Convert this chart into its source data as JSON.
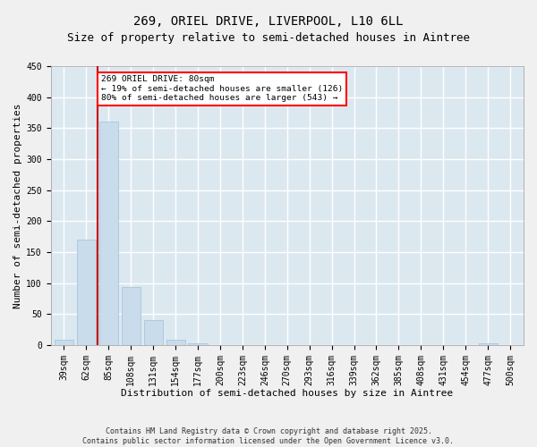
{
  "title_line1": "269, ORIEL DRIVE, LIVERPOOL, L10 6LL",
  "title_line2": "Size of property relative to semi-detached houses in Aintree",
  "xlabel": "Distribution of semi-detached houses by size in Aintree",
  "ylabel": "Number of semi-detached properties",
  "categories": [
    "39sqm",
    "62sqm",
    "85sqm",
    "108sqm",
    "131sqm",
    "154sqm",
    "177sqm",
    "200sqm",
    "223sqm",
    "246sqm",
    "270sqm",
    "293sqm",
    "316sqm",
    "339sqm",
    "362sqm",
    "385sqm",
    "408sqm",
    "431sqm",
    "454sqm",
    "477sqm",
    "500sqm"
  ],
  "values": [
    8,
    170,
    360,
    93,
    40,
    9,
    2,
    0,
    0,
    0,
    0,
    0,
    0,
    0,
    0,
    0,
    0,
    0,
    0,
    2,
    0
  ],
  "bar_color": "#c8dcec",
  "bar_edge_color": "#a0c0d8",
  "vline_color": "#cc0000",
  "annotation_text": "269 ORIEL DRIVE: 80sqm\n← 19% of semi-detached houses are smaller (126)\n80% of semi-detached houses are larger (543) →",
  "ylim": [
    0,
    450
  ],
  "yticks": [
    0,
    50,
    100,
    150,
    200,
    250,
    300,
    350,
    400,
    450
  ],
  "bg_color": "#dce8f0",
  "grid_color": "#ffffff",
  "footer_line1": "Contains HM Land Registry data © Crown copyright and database right 2025.",
  "footer_line2": "Contains public sector information licensed under the Open Government Licence v3.0.",
  "title_fontsize": 10,
  "subtitle_fontsize": 9,
  "tick_fontsize": 7,
  "axis_label_fontsize": 8,
  "footer_fontsize": 6,
  "fig_bg_color": "#f0f0f0"
}
